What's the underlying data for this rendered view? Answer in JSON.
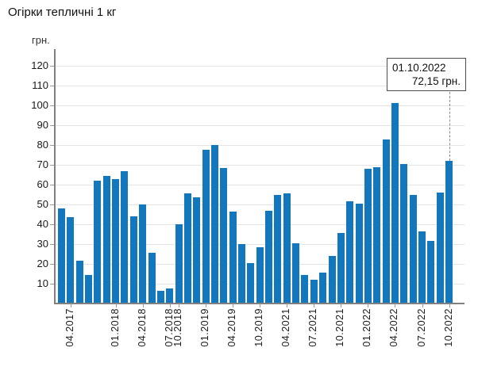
{
  "title": "Огірки тепличні 1 кг",
  "y_axis_unit": "грн.",
  "tooltip": {
    "date": "01.10.2022",
    "value": "72,15 грн."
  },
  "colors": {
    "bar": "#1277bd",
    "grid": "#e4e4e4",
    "axis": "#808080",
    "tick": "#999999",
    "text": "#1a1a1a",
    "tooltip_border": "#4d4d4d",
    "connector": "#8c8c8c"
  },
  "chart_data": {
    "type": "bar",
    "title": "Огірки тепличні 1 кг",
    "ylabel": "грн.",
    "grid": true,
    "legend": false,
    "ylim": [
      0,
      120
    ],
    "y_ticks": [
      10,
      20,
      30,
      40,
      50,
      60,
      70,
      80,
      90,
      100,
      110,
      120
    ],
    "values": [
      48,
      43.5,
      21.5,
      14.5,
      62,
      64.5,
      63,
      67,
      44,
      50,
      25.5,
      6.5,
      7.5,
      40,
      55.5,
      53.5,
      77.5,
      80,
      68.5,
      46.5,
      30,
      20.5,
      28.5,
      47,
      55,
      55.5,
      30.5,
      14.5,
      12,
      15.5,
      24,
      35.5,
      51.5,
      50.5,
      68,
      69,
      83,
      101.5,
      70.5,
      55,
      36.5,
      31.5,
      56,
      72.15
    ],
    "x_tick_labels": [
      {
        "index": 1,
        "label": "04.2017"
      },
      {
        "index": 6,
        "label": "01.2018"
      },
      {
        "index": 9,
        "label": "04.2018"
      },
      {
        "index": 12,
        "label": "07.2018"
      },
      {
        "index": 13,
        "label": "10.2018"
      },
      {
        "index": 16,
        "label": "01.2019"
      },
      {
        "index": 19,
        "label": "04.2019"
      },
      {
        "index": 22,
        "label": "10.2019"
      },
      {
        "index": 25,
        "label": "04.2021"
      },
      {
        "index": 28,
        "label": "07.2021"
      },
      {
        "index": 31,
        "label": "10.2021"
      },
      {
        "index": 34,
        "label": "01.2022"
      },
      {
        "index": 37,
        "label": "04.2022"
      },
      {
        "index": 40,
        "label": "07.2022"
      },
      {
        "index": 43,
        "label": "10.2022"
      }
    ],
    "annotation": {
      "date": "01.10.2022",
      "text": "72,15 грн.",
      "bar_index": 43
    }
  }
}
